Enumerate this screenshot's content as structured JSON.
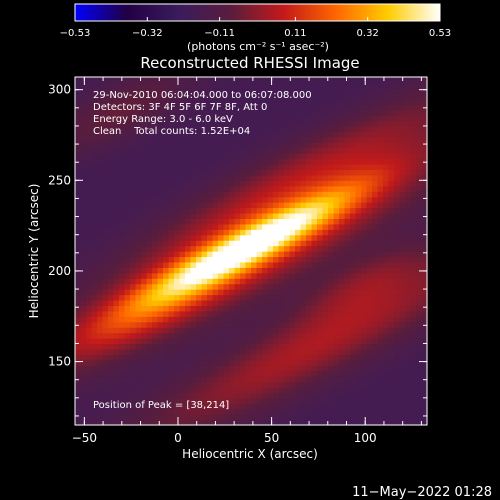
{
  "chart_data": {
    "type": "heatmap",
    "title": "Reconstructed RHESSI Image",
    "xlabel": "Heliocentric X (arcsec)",
    "ylabel": "Heliocentric Y (arcsec)",
    "xlim": [
      -55,
      133
    ],
    "ylim": [
      115,
      307
    ],
    "xticks": [
      -50,
      0,
      50,
      100
    ],
    "xtick_labels": [
      "−50",
      "0",
      "50",
      "100"
    ],
    "yticks": [
      150,
      200,
      250,
      300
    ],
    "colorbar": {
      "label": "(photons cm⁻² s⁻¹ asec⁻²)",
      "range": [
        -0.53,
        0.53
      ],
      "ticks": [
        -0.53,
        -0.32,
        -0.11,
        0.11,
        0.32,
        0.53
      ],
      "tick_labels": [
        "−0.53",
        "−0.32",
        "−0.11",
        "0.11",
        "0.32",
        "0.53"
      ],
      "colors": [
        "#0000ff",
        "#220044",
        "#3a1c5c",
        "#5a1d3c",
        "#c21a1a",
        "#ff6600",
        "#ffcc00",
        "#ffffff"
      ]
    },
    "annotations": [
      "29-Nov-2010 06:04:04.000 to 06:07:08.000",
      "Detectors: 3F 4F 5F 6F 7F 8F, Att 0",
      "Energy Range: 3.0 - 6.0 keV",
      "Clean    Total counts: 1.52E+04"
    ],
    "peak_label": "Position of Peak = [38,214]",
    "peak": [
      38,
      214
    ],
    "components": [
      {
        "x": 38,
        "y": 214,
        "amp": 0.53,
        "sx": 7,
        "sy": 44,
        "angle": 28
      },
      {
        "x": 40,
        "y": 212,
        "amp": 0.3,
        "sx": 16,
        "sy": 80,
        "angle": 28
      },
      {
        "x": 72,
        "y": 257,
        "amp": 0.16,
        "sx": 12,
        "sy": 70,
        "angle": 28
      },
      {
        "x": 75,
        "y": 160,
        "amp": 0.22,
        "sx": 13,
        "sy": 80,
        "angle": 28
      },
      {
        "x": -20,
        "y": 175,
        "amp": 0.13,
        "sx": 9,
        "sy": 40,
        "angle": 28
      },
      {
        "x": -32,
        "y": 288,
        "amp": 0.12,
        "sx": 10,
        "sy": 30,
        "angle": 28
      },
      {
        "x": 100,
        "y": 195,
        "amp": 0.12,
        "sx": 9,
        "sy": 28,
        "angle": 28
      }
    ],
    "background": -0.18
  },
  "timestamp": "11−May−2022 01:28"
}
